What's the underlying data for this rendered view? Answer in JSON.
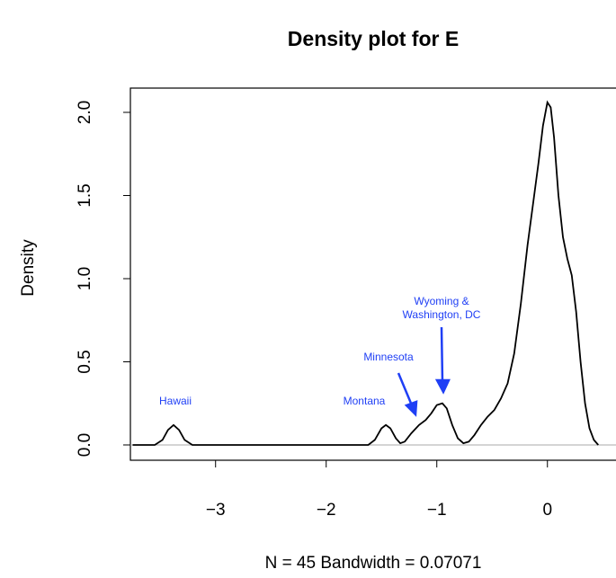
{
  "chart_data": {
    "type": "line",
    "title": "Density plot for E",
    "y_label": "Density",
    "x_label": "N = 45   Bandwidth = 0.07071",
    "color": "#000000",
    "annotation_color": "#1f3ff5",
    "x": [
      -3.75,
      -3.55,
      -3.48,
      -3.43,
      -3.38,
      -3.33,
      -3.28,
      -3.21,
      -1.62,
      -1.56,
      -1.5,
      -1.46,
      -1.42,
      -1.37,
      -1.33,
      -1.29,
      -1.23,
      -1.16,
      -1.1,
      -1.05,
      -1.0,
      -0.95,
      -0.91,
      -0.86,
      -0.81,
      -0.76,
      -0.71,
      -0.66,
      -0.6,
      -0.54,
      -0.48,
      -0.42,
      -0.36,
      -0.3,
      -0.24,
      -0.18,
      -0.12,
      -0.08,
      -0.04,
      0.0,
      0.03,
      0.06,
      0.1,
      0.14,
      0.18,
      0.22,
      0.26,
      0.3,
      0.34,
      0.38,
      0.42,
      0.46
    ],
    "y": [
      0,
      0,
      0.03,
      0.09,
      0.12,
      0.09,
      0.03,
      0,
      0,
      0.03,
      0.1,
      0.12,
      0.1,
      0.04,
      0.01,
      0.02,
      0.07,
      0.12,
      0.15,
      0.19,
      0.24,
      0.25,
      0.22,
      0.12,
      0.04,
      0.01,
      0.02,
      0.06,
      0.12,
      0.17,
      0.21,
      0.28,
      0.37,
      0.55,
      0.85,
      1.2,
      1.5,
      1.7,
      1.92,
      2.06,
      2.03,
      1.85,
      1.5,
      1.25,
      1.12,
      1.02,
      0.8,
      0.5,
      0.25,
      0.1,
      0.03,
      0
    ],
    "xlim": [
      -3.77,
      0.62
    ],
    "ylim": [
      -0.092,
      2.146
    ],
    "xticks": [
      {
        "value": -3,
        "label": "−3"
      },
      {
        "value": -2,
        "label": "−2"
      },
      {
        "value": -1,
        "label": "−1"
      },
      0
    ],
    "yticks": [
      {
        "value": 0,
        "label": "0.0"
      },
      {
        "value": 0.5,
        "label": "0.5"
      },
      {
        "value": 1,
        "label": "1.0"
      },
      {
        "value": 1.5,
        "label": "1.5"
      },
      {
        "value": 2,
        "label": "2.0"
      }
    ],
    "annotations": [
      "Hawaii",
      "Montana",
      "Minnesota",
      "Wyoming &",
      "Washington, DC"
    ]
  }
}
